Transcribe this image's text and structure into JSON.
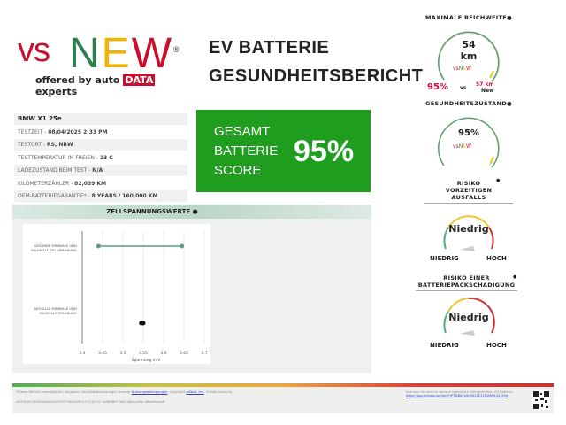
{
  "brand": {
    "vs": "vs",
    "new": [
      "N",
      "E",
      "W"
    ],
    "registered": "®",
    "tagline_pre": "offered by auto",
    "tagline_box": "DATA",
    "tagline_post": "experts"
  },
  "title": {
    "line1": "EV BATTERIE",
    "line2": "GESUNDHEITSBERICHT"
  },
  "vehicle": {
    "name": "BMW X1 25e",
    "rows": [
      {
        "label": "TESTZEIT - ",
        "value": "08/04/2025 2:33 PM"
      },
      {
        "label": "TESTORT - ",
        "value": "RS, NRW"
      },
      {
        "label": "TESTTEMPERATUR IM FREIEN - ",
        "value": "23 C"
      },
      {
        "label": "LADEZUSTAND BEIM TEST - ",
        "value": "N/A"
      },
      {
        "label": "KILOMETERZÄHLER - ",
        "value": "82,039 KM"
      },
      {
        "label": "OEM-BATTERIEGARANTIE* - ",
        "value": "8 YEARS / 160,000 KM"
      }
    ]
  },
  "score": {
    "label_lines": [
      "GESAMT",
      "BATTERIE",
      "SCORE"
    ],
    "value": "95%",
    "color": "#1f9d1f"
  },
  "chart_data": {
    "type": "range-dot",
    "title": "ZELLSPANNUNGSWERTE",
    "xlabel": "Spannung in V",
    "xlim": [
      3.4,
      3.7
    ],
    "xticks": [
      "3.4",
      "3.45",
      "3.5",
      "3.55",
      "3.6",
      "3.65",
      "3.7"
    ],
    "categories": [
      "GESUNDE MINIMALE UND MAXIMALE ZELLSPANNUNG",
      "AKTUELLE MINIMALE UND MAXIMALE SPANNUNG"
    ],
    "ranges": [
      {
        "min": 3.44,
        "max": 3.645,
        "color": "#5a9e85"
      },
      {
        "min": 3.545,
        "max": 3.55,
        "color": "#111111"
      }
    ],
    "grid": true
  },
  "range": {
    "title": "MAXIMALE REICHWEITE",
    "value": "54",
    "unit": "km",
    "percent": "95%",
    "vs": "vs",
    "new_value": "57 km",
    "new_label": "New"
  },
  "health": {
    "title": "GESUNDHEITSZUSTAND",
    "value": "95%"
  },
  "risk_failure": {
    "title_lines": [
      "RISIKO",
      "VORZEITIGEN",
      "AUSFALLS"
    ],
    "value": "Niedrig",
    "low": "NIEDRIG",
    "high": "HOCH"
  },
  "risk_pack": {
    "title_lines": [
      "RISIKO EINER",
      "BATTERIEPACKSCHÄDIGUNG"
    ],
    "value": "Niedrig",
    "low": "NIEDRIG",
    "high": "HOCH"
  },
  "footer": {
    "disclaimer": "*Dieser Bericht unterliegt den Vorgaben Geschäftsbedingungen unserer",
    "terms_link": "Nutzungsbedingungen",
    "copyright": ". Copyright",
    "company_link": "vsNew, Inc.",
    "private": ". Private Nutzung",
    "report_id": "#DF0D2C5348054604305707F7080E29E3-FC21E71C ILW60897 9AFI-48b5-af5d-96ad9eaeaff",
    "scan_text": "Scannen Sie den für weitere Details zur Gültigkeit Ihrer EV Batterie",
    "url": "https://app.vsnew.com/en/?!PT-BB67A905051E31E-BMW-X1-25e"
  }
}
